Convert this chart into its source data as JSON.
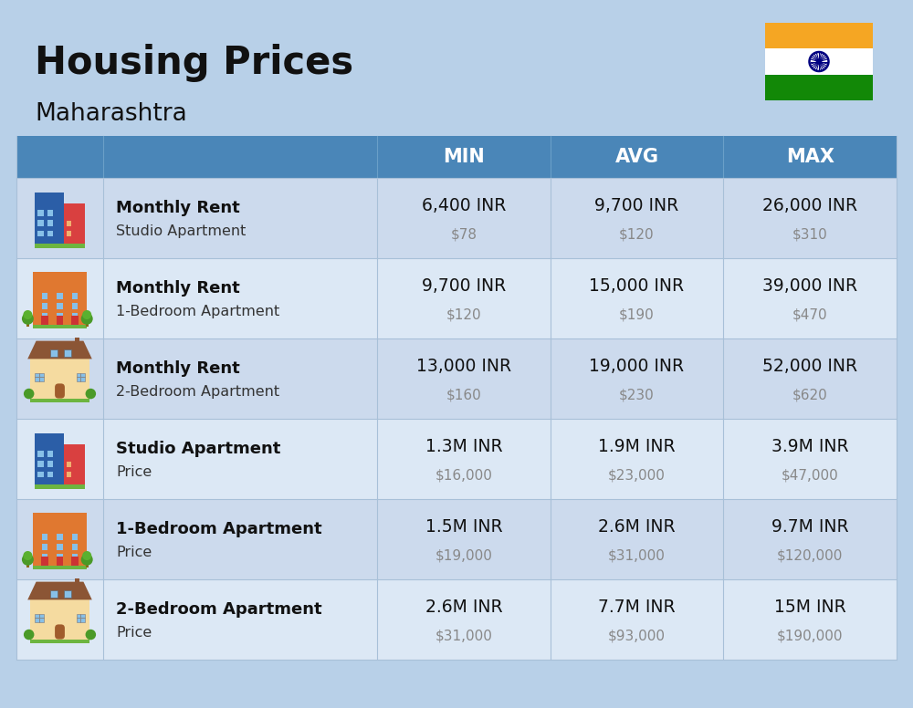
{
  "title": "Housing Prices",
  "subtitle": "Maharashtra",
  "bg_color": "#b8d0e8",
  "header_bg": "#4a86b8",
  "header_text_color": "#ffffff",
  "row_colors": [
    "#ccdaed",
    "#dce8f5"
  ],
  "col_headers": [
    "MIN",
    "AVG",
    "MAX"
  ],
  "rows": [
    {
      "label_bold": "Monthly Rent",
      "label_sub": "Studio Apartment",
      "min_inr": "6,400 INR",
      "min_usd": "$78",
      "avg_inr": "9,700 INR",
      "avg_usd": "$120",
      "max_inr": "26,000 INR",
      "max_usd": "$310",
      "icon_type": "studio_blue"
    },
    {
      "label_bold": "Monthly Rent",
      "label_sub": "1-Bedroom Apartment",
      "min_inr": "9,700 INR",
      "min_usd": "$120",
      "avg_inr": "15,000 INR",
      "avg_usd": "$190",
      "max_inr": "39,000 INR",
      "max_usd": "$470",
      "icon_type": "one_bed_orange"
    },
    {
      "label_bold": "Monthly Rent",
      "label_sub": "2-Bedroom Apartment",
      "min_inr": "13,000 INR",
      "min_usd": "$160",
      "avg_inr": "19,000 INR",
      "avg_usd": "$230",
      "max_inr": "52,000 INR",
      "max_usd": "$620",
      "icon_type": "two_bed_beige"
    },
    {
      "label_bold": "Studio Apartment",
      "label_sub": "Price",
      "min_inr": "1.3M INR",
      "min_usd": "$16,000",
      "avg_inr": "1.9M INR",
      "avg_usd": "$23,000",
      "max_inr": "3.9M INR",
      "max_usd": "$47,000",
      "icon_type": "studio_blue"
    },
    {
      "label_bold": "1-Bedroom Apartment",
      "label_sub": "Price",
      "min_inr": "1.5M INR",
      "min_usd": "$19,000",
      "avg_inr": "2.6M INR",
      "avg_usd": "$31,000",
      "max_inr": "9.7M INR",
      "max_usd": "$120,000",
      "icon_type": "one_bed_orange"
    },
    {
      "label_bold": "2-Bedroom Apartment",
      "label_sub": "Price",
      "min_inr": "2.6M INR",
      "min_usd": "$31,000",
      "avg_inr": "7.7M INR",
      "avg_usd": "$93,000",
      "max_inr": "15M INR",
      "max_usd": "$190,000",
      "icon_type": "two_bed_beige"
    }
  ]
}
